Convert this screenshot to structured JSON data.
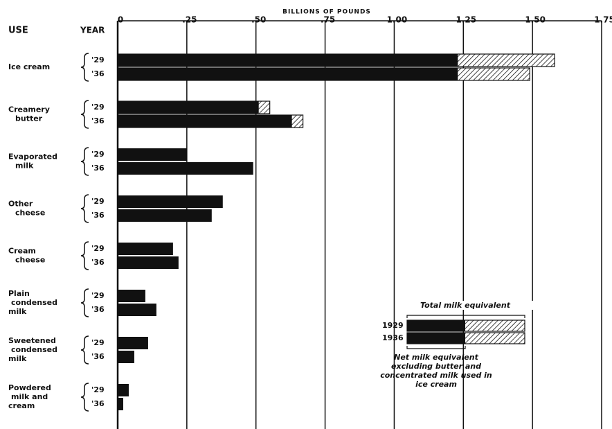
{
  "chart_data": {
    "type": "bar",
    "orientation": "horizontal",
    "xlabel": "BILLIONS OF POUNDS",
    "use_header": "USE",
    "year_header": "YEAR",
    "categories": [
      [
        "Ice cream"
      ],
      [
        "Creamery",
        "butter"
      ],
      [
        "Evaporated",
        "milk"
      ],
      [
        "Other",
        "cheese"
      ],
      [
        "Cream",
        "cheese"
      ],
      [
        "Plain",
        "condensed",
        "milk"
      ],
      [
        "Sweetened",
        "condensed",
        "milk"
      ],
      [
        "Powdered",
        "milk and",
        "cream"
      ]
    ],
    "years": [
      "'29",
      "'36"
    ],
    "legend_years": [
      "1929",
      "1936"
    ],
    "series": [
      {
        "name": "Net milk equivalent excluding butter and concentrated milk used in ice cream",
        "color": "#111111",
        "values": [
          [
            1.23,
            1.23
          ],
          [
            0.51,
            0.63
          ],
          [
            0.25,
            0.49
          ],
          [
            0.38,
            0.34
          ],
          [
            0.2,
            0.22
          ],
          [
            0.1,
            0.14
          ],
          [
            0.11,
            0.06
          ],
          [
            0.04,
            0.02
          ]
        ]
      },
      {
        "name": "Total milk equivalent",
        "color": "#111111",
        "hatched": true,
        "values": [
          [
            1.58,
            1.49
          ],
          [
            0.55,
            0.67
          ],
          [
            null,
            null
          ],
          [
            null,
            null
          ],
          [
            null,
            null
          ],
          [
            null,
            null
          ],
          [
            null,
            null
          ],
          [
            null,
            null
          ]
        ]
      }
    ],
    "xlim": [
      0,
      1.75
    ],
    "xticks": [
      0,
      {
        "value": 0.25,
        "label": ".25"
      },
      {
        "value": 0.5,
        "label": ".50"
      },
      {
        "value": 0.75,
        "label": ".75"
      },
      {
        "value": 1,
        "label": "1.00"
      },
      {
        "value": 1.25,
        "label": "1.25"
      },
      {
        "value": 1.5,
        "label": "1.50"
      },
      {
        "value": 1.75,
        "label": "1.75"
      }
    ],
    "grid": true
  }
}
